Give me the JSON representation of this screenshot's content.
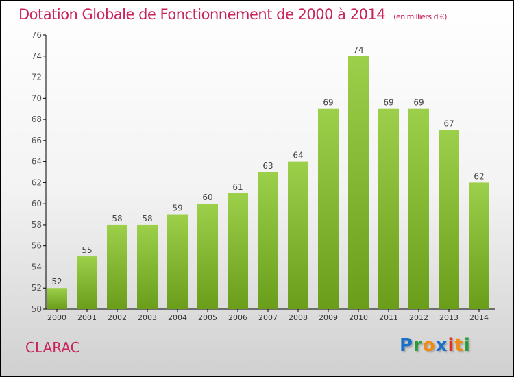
{
  "chart_data": {
    "type": "bar",
    "title": "Dotation Globale de Fonctionnement de 2000 à 2014",
    "subtitle": "(en milliers d'€)",
    "categories": [
      "2000",
      "2001",
      "2002",
      "2003",
      "2004",
      "2005",
      "2006",
      "2007",
      "2008",
      "2009",
      "2010",
      "2011",
      "2012",
      "2013",
      "2014"
    ],
    "values": [
      52,
      55,
      58,
      58,
      59,
      60,
      61,
      63,
      64,
      69,
      74,
      69,
      69,
      67,
      62
    ],
    "ylim": [
      50,
      76
    ],
    "yticks": [
      50,
      52,
      54,
      56,
      58,
      60,
      62,
      64,
      66,
      68,
      70,
      72,
      74,
      76
    ],
    "xlabel": "",
    "ylabel": "",
    "bar_color": "#8cc43c"
  },
  "commune": "CLARAC",
  "logo": "Proxiti"
}
